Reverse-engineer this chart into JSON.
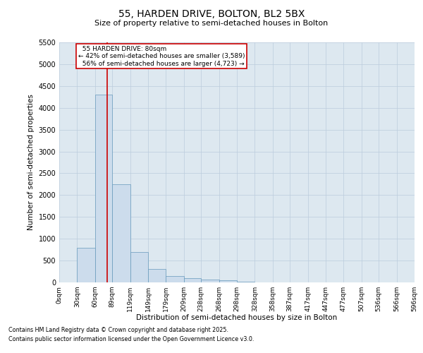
{
  "title1": "55, HARDEN DRIVE, BOLTON, BL2 5BX",
  "title2": "Size of property relative to semi-detached houses in Bolton",
  "xlabel": "Distribution of semi-detached houses by size in Bolton",
  "ylabel": "Number of semi-detached properties",
  "property_size": 80,
  "property_label": "55 HARDEN DRIVE: 80sqm",
  "pct_smaller": 42,
  "count_smaller": 3589,
  "pct_larger": 56,
  "count_larger": 4723,
  "bin_edges": [
    0,
    30,
    60,
    89,
    119,
    149,
    179,
    209,
    238,
    268,
    298,
    328,
    358,
    387,
    417,
    447,
    477,
    507,
    536,
    566,
    596
  ],
  "bin_labels": [
    "0sqm",
    "30sqm",
    "60sqm",
    "89sqm",
    "119sqm",
    "149sqm",
    "179sqm",
    "209sqm",
    "238sqm",
    "268sqm",
    "298sqm",
    "328sqm",
    "358sqm",
    "387sqm",
    "417sqm",
    "447sqm",
    "477sqm",
    "507sqm",
    "536sqm",
    "566sqm",
    "596sqm"
  ],
  "bar_heights": [
    5,
    800,
    4300,
    2250,
    700,
    300,
    150,
    90,
    70,
    50,
    10,
    5,
    2,
    1,
    1,
    0,
    0,
    0,
    0,
    0
  ],
  "bar_color": "#ccdcec",
  "bar_edge_color": "#6699bb",
  "vline_color": "#cc0000",
  "annotation_box_color": "#cc0000",
  "ylim": [
    0,
    5500
  ],
  "yticks": [
    0,
    500,
    1000,
    1500,
    2000,
    2500,
    3000,
    3500,
    4000,
    4500,
    5000,
    5500
  ],
  "grid_color": "#bbccdd",
  "background_color": "#dde8f0",
  "footnote1": "Contains HM Land Registry data © Crown copyright and database right 2025.",
  "footnote2": "Contains public sector information licensed under the Open Government Licence v3.0."
}
